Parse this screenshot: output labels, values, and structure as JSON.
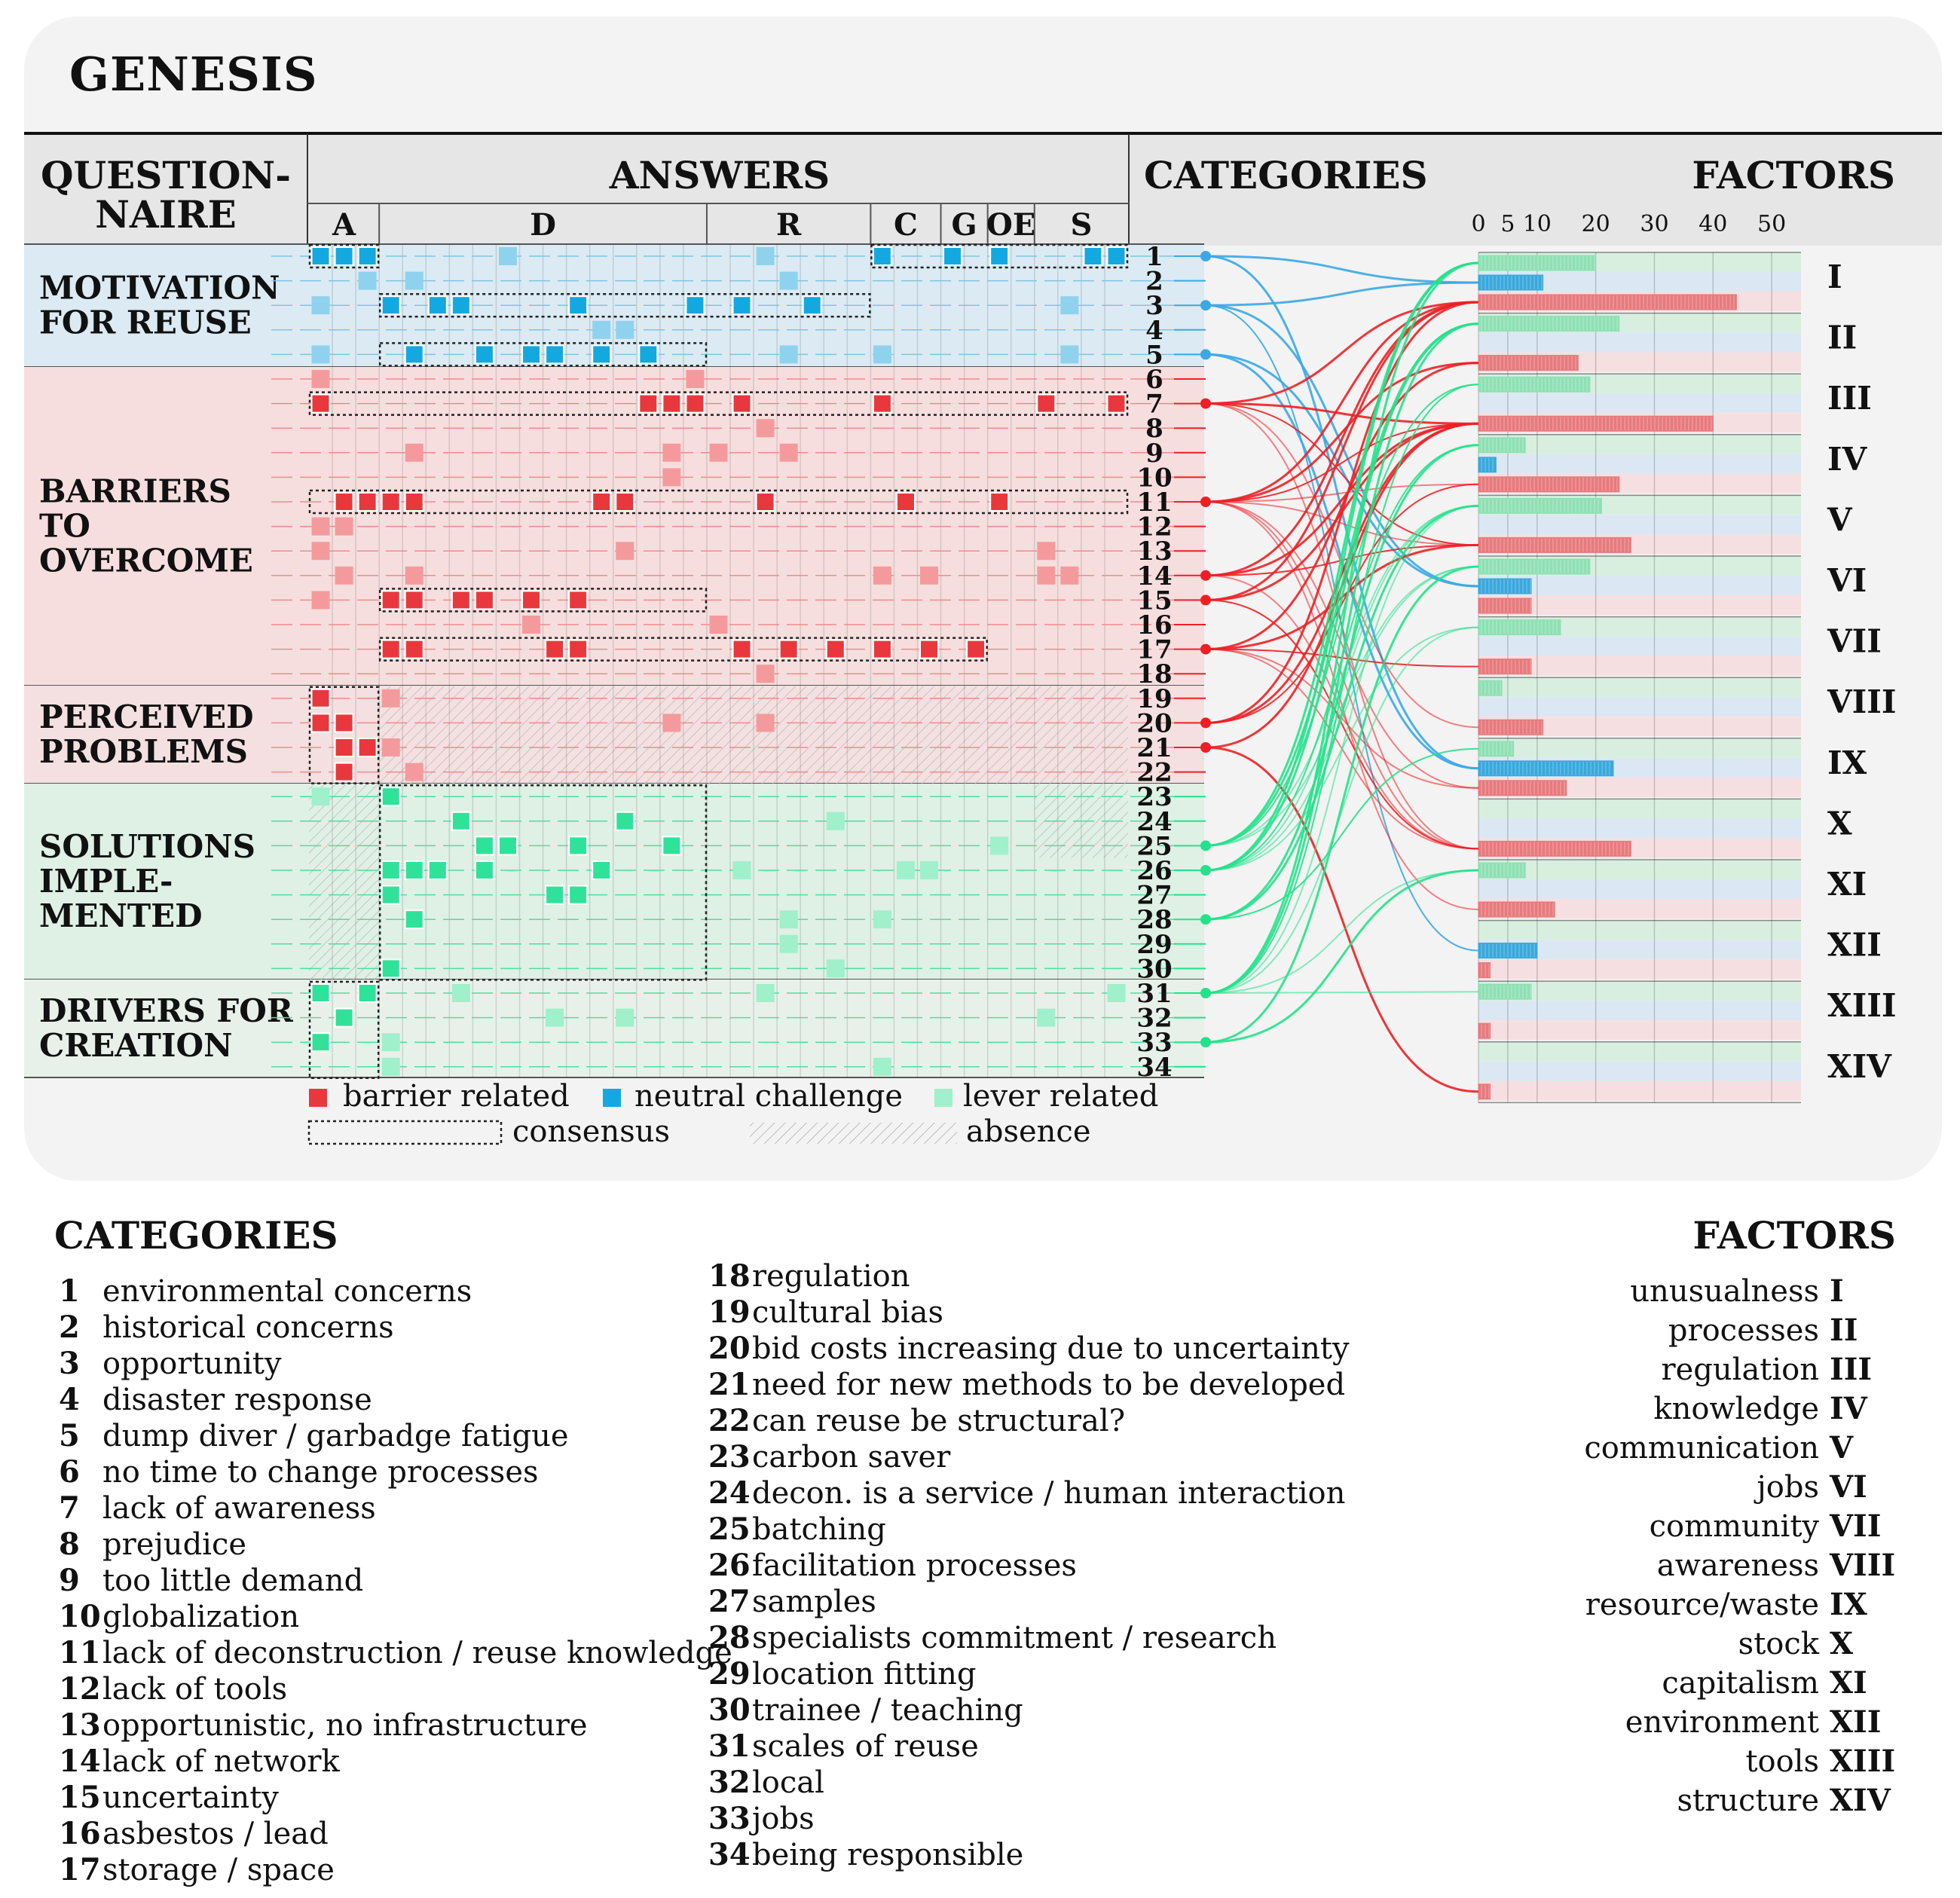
{
  "title": "GENESIS",
  "headers": {
    "questionnaire": [
      "QUESTION-",
      "NAIRE"
    ],
    "answers": "ANSWERS",
    "categories": "CATEGORIES",
    "factors": "FACTORS"
  },
  "answer_groups": [
    "A",
    "D",
    "R",
    "C",
    "G",
    "OE",
    "S"
  ],
  "questionnaire_sections": [
    {
      "lines": [
        "MOTIVATION",
        "FOR REUSE"
      ],
      "rows": [
        1,
        5
      ],
      "tint": "#dbeaf3"
    },
    {
      "lines": [
        "BARRIERS",
        "TO",
        "OVERCOME"
      ],
      "rows": [
        6,
        18
      ],
      "tint": "#f6dede"
    },
    {
      "lines": [
        "PERCEIVED",
        "PROBLEMS"
      ],
      "rows": [
        19,
        22
      ],
      "tint": "#f4e0e0"
    },
    {
      "lines": [
        "SOLUTIONS",
        "IMPLE-",
        "MENTED"
      ],
      "rows": [
        23,
        30
      ],
      "tint": "#dff0e4"
    },
    {
      "lines": [
        "DRIVERS FOR",
        "CREATION"
      ],
      "rows": [
        31,
        34
      ],
      "tint": "#e8f1e9"
    }
  ],
  "colors": {
    "barrier": "#e8383d",
    "neutral": "#13a9e0",
    "lever": "#2ee29a",
    "barrier_light": "#f59a9c",
    "neutral_light": "#8fd2ee",
    "lever_light": "#9ff0cb"
  },
  "axis_ticks": [
    "0",
    "5",
    "10",
    "20",
    "30",
    "40",
    "50"
  ],
  "legend": {
    "barrier": "barrier related",
    "neutral": "neutral challenge",
    "lever": "lever related",
    "consensus": "consensus",
    "absence": "absence"
  },
  "chart_data": {
    "type": "bar",
    "title": "FACTORS",
    "axis_range": [
      0,
      55
    ],
    "factors": [
      "I",
      "II",
      "III",
      "IV",
      "V",
      "VI",
      "VII",
      "VIII",
      "IX",
      "X",
      "XI",
      "XII",
      "XIII",
      "XIV"
    ],
    "series": [
      {
        "name": "lever related",
        "values": [
          20,
          24,
          19,
          8,
          21,
          19,
          14,
          4,
          6,
          0,
          8,
          0,
          9,
          0
        ]
      },
      {
        "name": "neutral challenge",
        "values": [
          11,
          0,
          0,
          3,
          0,
          9,
          0,
          0,
          23,
          0,
          0,
          10,
          0,
          0
        ]
      },
      {
        "name": "barrier related",
        "values": [
          44,
          17,
          40,
          24,
          26,
          9,
          9,
          11,
          15,
          26,
          13,
          2,
          2,
          2
        ]
      }
    ]
  },
  "categories": [
    {
      "n": "1",
      "label": "environmental concerns"
    },
    {
      "n": "2",
      "label": "historical concerns"
    },
    {
      "n": "3",
      "label": "opportunity"
    },
    {
      "n": "4",
      "label": "disaster response"
    },
    {
      "n": "5",
      "label": "dump diver / garbadge fatigue"
    },
    {
      "n": "6",
      "label": "no time to change processes"
    },
    {
      "n": "7",
      "label": "lack of awareness"
    },
    {
      "n": "8",
      "label": "prejudice"
    },
    {
      "n": "9",
      "label": "too little demand"
    },
    {
      "n": "10",
      "label": "globalization"
    },
    {
      "n": "11",
      "label": "lack of deconstruction / reuse knowledge"
    },
    {
      "n": "12",
      "label": "lack of tools"
    },
    {
      "n": "13",
      "label": "opportunistic, no infrastructure"
    },
    {
      "n": "14",
      "label": "lack of network"
    },
    {
      "n": "15",
      "label": "uncertainty"
    },
    {
      "n": "16",
      "label": "asbestos / lead"
    },
    {
      "n": "17",
      "label": "storage / space"
    },
    {
      "n": "18",
      "label": "regulation"
    },
    {
      "n": "19",
      "label": "cultural bias"
    },
    {
      "n": "20",
      "label": "bid costs increasing due to uncertainty"
    },
    {
      "n": "21",
      "label": "need for new methods to be developed"
    },
    {
      "n": "22",
      "label": "can reuse be structural?"
    },
    {
      "n": "23",
      "label": "carbon saver"
    },
    {
      "n": "24",
      "label": "decon. is a service / human interaction"
    },
    {
      "n": "25",
      "label": "batching"
    },
    {
      "n": "26",
      "label": "facilitation processes"
    },
    {
      "n": "27",
      "label": "samples"
    },
    {
      "n": "28",
      "label": "specialists commitment / research"
    },
    {
      "n": "29",
      "label": "location fitting"
    },
    {
      "n": "30",
      "label": "trainee / teaching"
    },
    {
      "n": "31",
      "label": "scales of reuse"
    },
    {
      "n": "32",
      "label": "local"
    },
    {
      "n": "33",
      "label": "jobs"
    },
    {
      "n": "34",
      "label": "being responsible"
    }
  ],
  "factor_names": [
    {
      "roman": "I",
      "label": "unusualness"
    },
    {
      "roman": "II",
      "label": "processes"
    },
    {
      "roman": "III",
      "label": "regulation"
    },
    {
      "roman": "IV",
      "label": "knowledge"
    },
    {
      "roman": "V",
      "label": "communication"
    },
    {
      "roman": "VI",
      "label": "jobs"
    },
    {
      "roman": "VII",
      "label": "community"
    },
    {
      "roman": "VIII",
      "label": "awareness"
    },
    {
      "roman": "IX",
      "label": "resource/waste"
    },
    {
      "roman": "X",
      "label": "stock"
    },
    {
      "roman": "XI",
      "label": "capitalism"
    },
    {
      "roman": "XII",
      "label": "environment"
    },
    {
      "roman": "XIII",
      "label": "tools"
    },
    {
      "roman": "XIV",
      "label": "structure"
    }
  ],
  "answer_matrix": [
    {
      "cat": 1,
      "cells": [
        [
          0,
          "n",
          1
        ],
        [
          1,
          "n",
          1
        ],
        [
          2,
          "n",
          1
        ],
        [
          8,
          "n",
          0
        ],
        [
          19,
          "n",
          0
        ],
        [
          24,
          "n",
          1
        ],
        [
          27,
          "n",
          1
        ],
        [
          29,
          "n",
          1
        ],
        [
          33,
          "n",
          1
        ],
        [
          34,
          "n",
          1
        ]
      ]
    },
    {
      "cat": 2,
      "cells": [
        [
          4,
          "n",
          0
        ],
        [
          20,
          "n",
          0
        ],
        [
          2,
          "n",
          0
        ]
      ]
    },
    {
      "cat": 3,
      "cells": [
        [
          0,
          "n",
          0
        ],
        [
          3,
          "n",
          1
        ],
        [
          5,
          "n",
          1
        ],
        [
          6,
          "n",
          1
        ],
        [
          11,
          "n",
          1
        ],
        [
          16,
          "n",
          1
        ],
        [
          18,
          "n",
          1
        ],
        [
          21,
          "n",
          1
        ],
        [
          32,
          "n",
          0
        ]
      ]
    },
    {
      "cat": 4,
      "cells": [
        [
          12,
          "n",
          0
        ],
        [
          13,
          "n",
          0
        ]
      ]
    },
    {
      "cat": 5,
      "cells": [
        [
          0,
          "n",
          0
        ],
        [
          4,
          "n",
          1
        ],
        [
          7,
          "n",
          1
        ],
        [
          9,
          "n",
          1
        ],
        [
          10,
          "n",
          1
        ],
        [
          12,
          "n",
          1
        ],
        [
          14,
          "n",
          1
        ],
        [
          24,
          "n",
          0
        ],
        [
          20,
          "n",
          0
        ],
        [
          32,
          "n",
          0
        ]
      ]
    },
    {
      "cat": 6,
      "cells": [
        [
          0,
          "b",
          0
        ],
        [
          16,
          "b",
          0
        ]
      ]
    },
    {
      "cat": 7,
      "cells": [
        [
          0,
          "b",
          1
        ],
        [
          14,
          "b",
          1
        ],
        [
          15,
          "b",
          1
        ],
        [
          16,
          "b",
          1
        ],
        [
          18,
          "b",
          1
        ],
        [
          24,
          "b",
          1
        ],
        [
          31,
          "b",
          1
        ],
        [
          34,
          "b",
          1
        ]
      ]
    },
    {
      "cat": 8,
      "cells": [
        [
          19,
          "b",
          0
        ]
      ]
    },
    {
      "cat": 9,
      "cells": [
        [
          4,
          "b",
          0
        ],
        [
          15,
          "b",
          0
        ],
        [
          17,
          "b",
          0
        ],
        [
          20,
          "b",
          0
        ]
      ]
    },
    {
      "cat": 10,
      "cells": [
        [
          15,
          "b",
          0
        ]
      ]
    },
    {
      "cat": 11,
      "cells": [
        [
          1,
          "b",
          1
        ],
        [
          2,
          "b",
          1
        ],
        [
          3,
          "b",
          1
        ],
        [
          4,
          "b",
          1
        ],
        [
          12,
          "b",
          1
        ],
        [
          13,
          "b",
          1
        ],
        [
          19,
          "b",
          1
        ],
        [
          25,
          "b",
          1
        ],
        [
          29,
          "b",
          1
        ]
      ]
    },
    {
      "cat": 12,
      "cells": [
        [
          0,
          "b",
          0
        ],
        [
          1,
          "b",
          0
        ]
      ]
    },
    {
      "cat": 13,
      "cells": [
        [
          0,
          "b",
          0
        ],
        [
          13,
          "b",
          0
        ],
        [
          31,
          "b",
          0
        ]
      ]
    },
    {
      "cat": 14,
      "cells": [
        [
          1,
          "b",
          0
        ],
        [
          4,
          "b",
          0
        ],
        [
          24,
          "b",
          0
        ],
        [
          26,
          "b",
          0
        ],
        [
          31,
          "b",
          0
        ],
        [
          32,
          "b",
          0
        ]
      ]
    },
    {
      "cat": 15,
      "cells": [
        [
          0,
          "b",
          0
        ],
        [
          3,
          "b",
          1
        ],
        [
          4,
          "b",
          1
        ],
        [
          6,
          "b",
          1
        ],
        [
          7,
          "b",
          1
        ],
        [
          9,
          "b",
          1
        ],
        [
          11,
          "b",
          1
        ]
      ]
    },
    {
      "cat": 16,
      "cells": [
        [
          9,
          "b",
          0
        ],
        [
          17,
          "b",
          0
        ]
      ]
    },
    {
      "cat": 17,
      "cells": [
        [
          3,
          "b",
          1
        ],
        [
          4,
          "b",
          1
        ],
        [
          10,
          "b",
          1
        ],
        [
          11,
          "b",
          1
        ],
        [
          18,
          "b",
          1
        ],
        [
          20,
          "b",
          1
        ],
        [
          22,
          "b",
          1
        ],
        [
          24,
          "b",
          1
        ],
        [
          26,
          "b",
          1
        ],
        [
          28,
          "b",
          1
        ]
      ]
    },
    {
      "cat": 18,
      "cells": [
        [
          19,
          "b",
          0
        ]
      ]
    },
    {
      "cat": 19,
      "cells": [
        [
          0,
          "b",
          1
        ],
        [
          3,
          "b",
          0
        ]
      ]
    },
    {
      "cat": 20,
      "cells": [
        [
          0,
          "b",
          1
        ],
        [
          1,
          "b",
          1
        ],
        [
          15,
          "b",
          0
        ],
        [
          19,
          "b",
          0
        ]
      ]
    },
    {
      "cat": 21,
      "cells": [
        [
          1,
          "b",
          1
        ],
        [
          2,
          "b",
          1
        ],
        [
          3,
          "b",
          0
        ]
      ]
    },
    {
      "cat": 22,
      "cells": [
        [
          1,
          "b",
          1
        ],
        [
          4,
          "b",
          0
        ]
      ]
    },
    {
      "cat": 23,
      "cells": [
        [
          0,
          "l",
          0
        ],
        [
          3,
          "l",
          1
        ]
      ]
    },
    {
      "cat": 24,
      "cells": [
        [
          6,
          "l",
          1
        ],
        [
          13,
          "l",
          1
        ],
        [
          22,
          "l",
          0
        ]
      ]
    },
    {
      "cat": 25,
      "cells": [
        [
          7,
          "l",
          1
        ],
        [
          8,
          "l",
          1
        ],
        [
          11,
          "l",
          1
        ],
        [
          15,
          "l",
          1
        ],
        [
          29,
          "l",
          0
        ]
      ]
    },
    {
      "cat": 26,
      "cells": [
        [
          3,
          "l",
          1
        ],
        [
          4,
          "l",
          1
        ],
        [
          5,
          "l",
          1
        ],
        [
          7,
          "l",
          1
        ],
        [
          12,
          "l",
          1
        ],
        [
          18,
          "l",
          0
        ],
        [
          25,
          "l",
          0
        ],
        [
          26,
          "l",
          0
        ]
      ]
    },
    {
      "cat": 27,
      "cells": [
        [
          3,
          "l",
          1
        ],
        [
          10,
          "l",
          1
        ],
        [
          11,
          "l",
          1
        ]
      ]
    },
    {
      "cat": 28,
      "cells": [
        [
          4,
          "l",
          1
        ],
        [
          20,
          "l",
          0
        ],
        [
          24,
          "l",
          0
        ]
      ]
    },
    {
      "cat": 29,
      "cells": [
        [
          20,
          "l",
          0
        ]
      ]
    },
    {
      "cat": 30,
      "cells": [
        [
          3,
          "l",
          1
        ],
        [
          22,
          "l",
          0
        ]
      ]
    },
    {
      "cat": 31,
      "cells": [
        [
          0,
          "l",
          1
        ],
        [
          2,
          "l",
          1
        ],
        [
          6,
          "l",
          0
        ],
        [
          19,
          "l",
          0
        ],
        [
          34,
          "l",
          0
        ]
      ]
    },
    {
      "cat": 32,
      "cells": [
        [
          1,
          "l",
          1
        ],
        [
          10,
          "l",
          0
        ],
        [
          13,
          "l",
          0
        ],
        [
          31,
          "l",
          0
        ]
      ]
    },
    {
      "cat": 33,
      "cells": [
        [
          0,
          "l",
          1
        ],
        [
          3,
          "l",
          0
        ]
      ]
    },
    {
      "cat": 34,
      "cells": [
        [
          3,
          "l",
          0
        ],
        [
          24,
          "l",
          0
        ]
      ]
    }
  ],
  "links": [
    {
      "from": 1,
      "to": [
        1,
        9
      ],
      "kind": "n"
    },
    {
      "from": 3,
      "to": [
        1,
        6,
        12
      ],
      "kind": "n"
    },
    {
      "from": 5,
      "to": [
        9,
        6
      ],
      "kind": "n"
    },
    {
      "from": 7,
      "to": [
        1,
        3,
        5,
        8,
        10
      ],
      "kind": "b"
    },
    {
      "from": 11,
      "to": [
        1,
        2,
        3,
        4,
        5,
        9,
        10,
        11
      ],
      "kind": "b"
    },
    {
      "from": 14,
      "to": [
        1,
        3,
        5,
        10
      ],
      "kind": "b"
    },
    {
      "from": 15,
      "to": [
        1,
        3,
        10
      ],
      "kind": "b"
    },
    {
      "from": 17,
      "to": [
        2,
        5,
        7,
        9,
        10
      ],
      "kind": "b"
    },
    {
      "from": 20,
      "to": [
        1,
        3,
        4
      ],
      "kind": "b"
    },
    {
      "from": 21,
      "to": [
        3,
        14
      ],
      "kind": "b"
    },
    {
      "from": 26,
      "to": [
        1,
        2,
        4,
        5,
        6,
        7
      ],
      "kind": "l"
    },
    {
      "from": 31,
      "to": [
        1,
        2,
        3,
        5,
        7,
        11,
        13
      ],
      "kind": "l"
    },
    {
      "from": 25,
      "to": [
        1,
        2,
        3,
        5,
        6
      ],
      "kind": "l"
    },
    {
      "from": 28,
      "to": [
        4,
        5,
        9
      ],
      "kind": "l"
    },
    {
      "from": 33,
      "to": [
        6,
        11
      ],
      "kind": "l"
    }
  ]
}
